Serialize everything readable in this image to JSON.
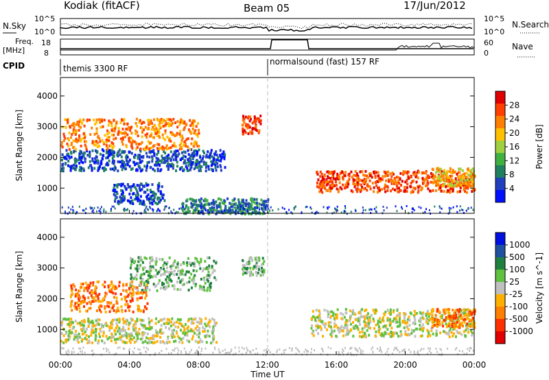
{
  "header": {
    "station": "Kodiak (fitACF)",
    "beam": "Beam 05",
    "date": "17/Jun/2012"
  },
  "panels": {
    "nsky": {
      "left_label": "N.Sky",
      "right_label": "N.Search",
      "left_ticks": [
        "10^5",
        "10^0"
      ],
      "right_ticks": [
        "10^5",
        "10^0"
      ]
    },
    "freq": {
      "left_label_top": "Freq.",
      "left_label_bottom": "[MHz]",
      "right_label": "Nave",
      "left_ticks": [
        "18",
        "8"
      ],
      "right_ticks": [
        "60",
        "0"
      ]
    },
    "cpid": {
      "label": "CPID",
      "modes": [
        {
          "name": "themis 3300 RF",
          "start_hour": 0,
          "end_hour": 12
        },
        {
          "name": "normalsound (fast) 157 RF",
          "start_hour": 12,
          "end_hour": 24
        }
      ]
    }
  },
  "chart_data": [
    {
      "type": "heatmap",
      "title": "",
      "xlabel": "Time UT",
      "ylabel": "Slant Range [km]",
      "x_ticks": [
        "00:00",
        "04:00",
        "08:00",
        "12:00",
        "16:00",
        "20:00",
        "00:00"
      ],
      "xlim_hours": [
        0,
        24
      ],
      "ylim_km": [
        180,
        4600
      ],
      "y_ticks": [
        1000,
        2000,
        3000,
        4000
      ],
      "colorbar": {
        "label": "Power [dB]",
        "ticks": [
          "28",
          "24",
          "20",
          "16",
          "12",
          "8",
          "4"
        ],
        "colors": [
          "#e00000",
          "#ff4000",
          "#ff8000",
          "#ffc000",
          "#a0d040",
          "#40b040",
          "#208060",
          "#2040c0",
          "#0010ff"
        ]
      },
      "echo_regions": [
        {
          "t0": 0.0,
          "t1": 9.5,
          "r0": 1600,
          "r1": 2300,
          "level": 7
        },
        {
          "t0": 0.0,
          "t1": 8.0,
          "r0": 2300,
          "r1": 3300,
          "level": 2
        },
        {
          "t0": 3.0,
          "t1": 6.0,
          "r0": 500,
          "r1": 1200,
          "level": 7
        },
        {
          "t0": 7.0,
          "t1": 12.0,
          "r0": 200,
          "r1": 700,
          "level": 6
        },
        {
          "t0": 10.5,
          "t1": 11.6,
          "r0": 2800,
          "r1": 3400,
          "level": 1
        },
        {
          "t0": 14.8,
          "t1": 24.0,
          "r0": 900,
          "r1": 1600,
          "level": 1
        },
        {
          "t0": 21.5,
          "t1": 24.0,
          "r0": 1100,
          "r1": 1700,
          "level": 3
        }
      ]
    },
    {
      "type": "heatmap",
      "title": "",
      "xlabel": "Time UT",
      "ylabel": "Slant Range [km]",
      "x_ticks": [
        "00:00",
        "04:00",
        "08:00",
        "12:00",
        "16:00",
        "20:00",
        "00:00"
      ],
      "xlim_hours": [
        0,
        24
      ],
      "ylim_km": [
        180,
        4600
      ],
      "y_ticks": [
        1000,
        2000,
        3000,
        4000
      ],
      "colorbar": {
        "label": "Velocity [m s^-1]",
        "ticks": [
          "1000",
          "500",
          "100",
          "25",
          "-25",
          "-100",
          "-500",
          "-1000"
        ],
        "colors": [
          "#0010e0",
          "#2050a0",
          "#208040",
          "#60c040",
          "#c0c0c0",
          "#ffb000",
          "#ff8000",
          "#ff3000",
          "#e00000"
        ]
      },
      "echo_regions": [
        {
          "t0": 0.0,
          "t1": 9.0,
          "r0": 600,
          "r1": 1400,
          "level": 4
        },
        {
          "t0": 0.5,
          "t1": 5.0,
          "r0": 1600,
          "r1": 2600,
          "level": 6
        },
        {
          "t0": 4.0,
          "t1": 9.0,
          "r0": 2300,
          "r1": 3400,
          "level": 3
        },
        {
          "t0": 10.5,
          "t1": 11.8,
          "r0": 2800,
          "r1": 3400,
          "level": 3
        },
        {
          "t0": 14.5,
          "t1": 24.0,
          "r0": 800,
          "r1": 1700,
          "level": 4
        },
        {
          "t0": 21.5,
          "t1": 24.0,
          "r0": 1100,
          "r1": 1700,
          "level": 6
        }
      ]
    }
  ]
}
